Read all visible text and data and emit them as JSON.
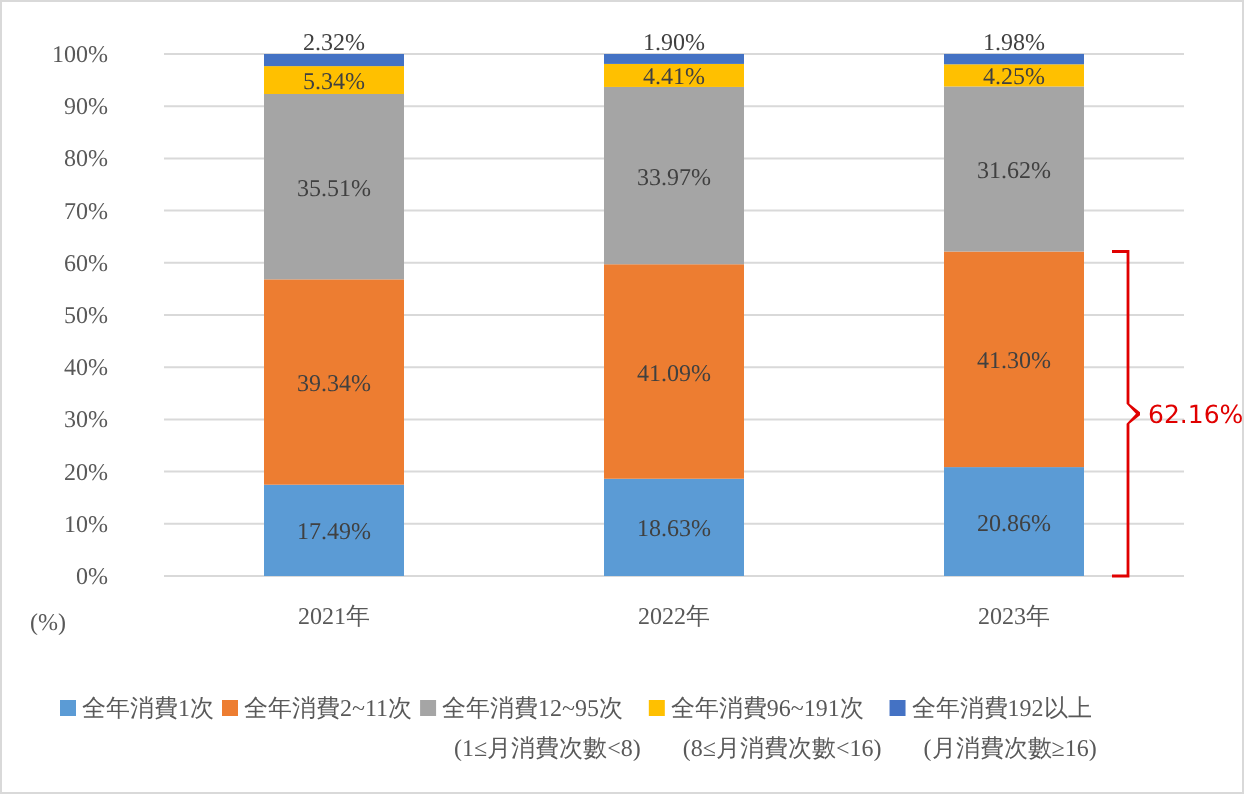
{
  "chart_data": {
    "type": "bar",
    "stacked": true,
    "categories": [
      "2021年",
      "2022年",
      "2023年"
    ],
    "series": [
      {
        "name": "全年消費1次",
        "color": "#5b9bd5",
        "values": [
          17.49,
          18.63,
          20.86
        ],
        "value_labels": [
          "17.49%",
          "18.63%",
          "20.86%"
        ]
      },
      {
        "name": "全年消費2~11次",
        "color": "#ed7d31",
        "values": [
          39.34,
          41.09,
          41.3
        ],
        "value_labels": [
          "39.34%",
          "41.09%",
          "41.30%"
        ]
      },
      {
        "name": "全年消費12~95次\n(1≤月消費次數<8)",
        "color": "#a5a5a5",
        "values": [
          35.51,
          33.97,
          31.62
        ],
        "value_labels": [
          "35.51%",
          "33.97%",
          "31.62%"
        ]
      },
      {
        "name": "全年消費96~191次\n(8≤月消費次數<16)",
        "color": "#ffc000",
        "values": [
          5.34,
          4.41,
          4.25
        ],
        "value_labels": [
          "5.34%",
          "4.41%",
          "4.25%"
        ]
      },
      {
        "name": "全年消費192以上\n(月消費次數≥16)",
        "color": "#4472c4",
        "values": [
          2.32,
          1.9,
          1.98
        ],
        "value_labels": [
          "2.32%",
          "1.90%",
          "1.98%"
        ]
      }
    ],
    "ylim": [
      0,
      100
    ],
    "yticks": [
      {
        "value": 0,
        "label": "0%"
      },
      {
        "value": 10,
        "label": "10%"
      },
      {
        "value": 20,
        "label": "20%"
      },
      {
        "value": 30,
        "label": "30%"
      },
      {
        "value": 40,
        "label": "40%"
      },
      {
        "value": 50,
        "label": "50%"
      },
      {
        "value": 60,
        "label": "60%"
      },
      {
        "value": 70,
        "label": "70%"
      },
      {
        "value": 80,
        "label": "80%"
      },
      {
        "value": 90,
        "label": "90%"
      },
      {
        "value": 100,
        "label": "100%"
      }
    ],
    "ylabel": "(%)",
    "grid": "y",
    "legend": "bottom",
    "annotations": [
      "62.16%"
    ]
  }
}
